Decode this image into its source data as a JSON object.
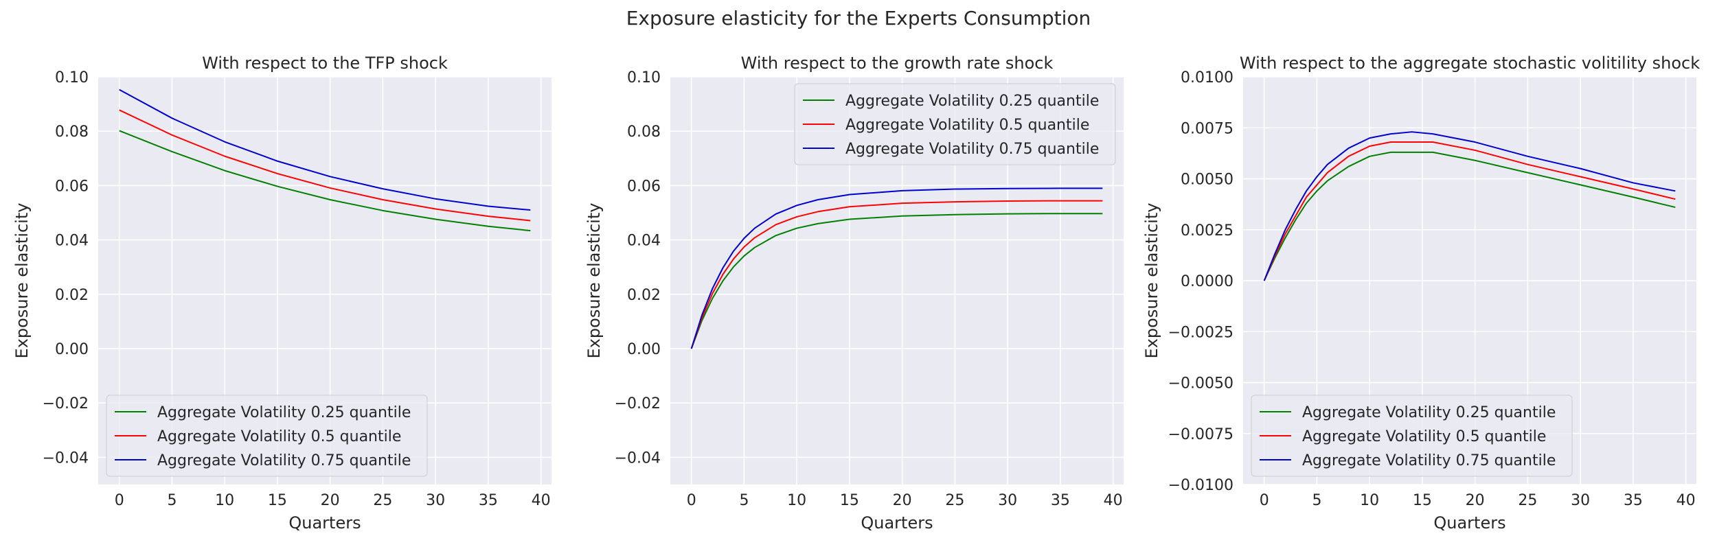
{
  "figure": {
    "title": "Exposure elasticity for the Experts Consumption"
  },
  "chart_data": [
    {
      "type": "line",
      "title": "With respect to the TFP shock",
      "xlabel": "Quarters",
      "ylabel": "Exposure elasticity",
      "xlim": [
        -2,
        41
      ],
      "ylim": [
        -0.05,
        0.1
      ],
      "xticks": [
        0,
        5,
        10,
        15,
        20,
        25,
        30,
        35,
        40
      ],
      "yticks": [
        -0.04,
        -0.02,
        0.0,
        0.02,
        0.04,
        0.06,
        0.08,
        0.1
      ],
      "ytick_labels": [
        "−0.04",
        "−0.02",
        "0.00",
        "0.02",
        "0.04",
        "0.06",
        "0.08",
        "0.10"
      ],
      "grid": true,
      "legend": "lower-left",
      "x": [
        0,
        5,
        10,
        15,
        20,
        25,
        30,
        35,
        39
      ],
      "series": [
        {
          "name": "Aggregate Volatility 0.25 quantile",
          "color": "#008000",
          "values": [
            0.0802,
            0.0725,
            0.0655,
            0.0597,
            0.0548,
            0.0508,
            0.0476,
            0.045,
            0.0434
          ]
        },
        {
          "name": "Aggregate Volatility 0.5 quantile",
          "color": "#ff0000",
          "values": [
            0.0878,
            0.0786,
            0.0708,
            0.0644,
            0.0591,
            0.0548,
            0.0514,
            0.0487,
            0.0471
          ]
        },
        {
          "name": "Aggregate Volatility 0.75 quantile",
          "color": "#0000cd",
          "values": [
            0.0953,
            0.0848,
            0.0761,
            0.069,
            0.0633,
            0.0588,
            0.0551,
            0.0524,
            0.051
          ]
        }
      ]
    },
    {
      "type": "line",
      "title": "With respect to the growth rate shock",
      "xlabel": "Quarters",
      "ylabel": "Exposure elasticity",
      "xlim": [
        -2,
        41
      ],
      "ylim": [
        -0.05,
        0.1
      ],
      "xticks": [
        0,
        5,
        10,
        15,
        20,
        25,
        30,
        35,
        40
      ],
      "yticks": [
        -0.04,
        -0.02,
        0.0,
        0.02,
        0.04,
        0.06,
        0.08,
        0.1
      ],
      "ytick_labels": [
        "−0.04",
        "−0.02",
        "0.00",
        "0.02",
        "0.04",
        "0.06",
        "0.08",
        "0.10"
      ],
      "grid": true,
      "legend": "upper-right",
      "x": [
        0,
        1,
        2,
        3,
        4,
        5,
        6,
        8,
        10,
        12,
        15,
        20,
        25,
        30,
        35,
        39
      ],
      "series": [
        {
          "name": "Aggregate Volatility 0.25 quantile",
          "color": "#008000",
          "values": [
            0.0,
            0.0103,
            0.0185,
            0.025,
            0.0301,
            0.0341,
            0.0372,
            0.0416,
            0.0443,
            0.046,
            0.0476,
            0.0488,
            0.0493,
            0.0496,
            0.0497,
            0.0497
          ]
        },
        {
          "name": "Aggregate Volatility 0.5 quantile",
          "color": "#ff0000",
          "values": [
            0.0,
            0.0113,
            0.0203,
            0.0274,
            0.033,
            0.0374,
            0.0408,
            0.0456,
            0.0485,
            0.0504,
            0.0522,
            0.0535,
            0.054,
            0.0543,
            0.0544,
            0.0544
          ]
        },
        {
          "name": "Aggregate Volatility 0.75 quantile",
          "color": "#0000cd",
          "values": [
            0.0,
            0.0123,
            0.0221,
            0.0298,
            0.0359,
            0.0406,
            0.0443,
            0.0495,
            0.0527,
            0.0548,
            0.0567,
            0.0581,
            0.0587,
            0.0589,
            0.059,
            0.059
          ]
        }
      ]
    },
    {
      "type": "line",
      "title": "With respect to the aggregate stochastic volitility shock",
      "xlabel": "Quarters",
      "ylabel": "Exposure elasticity",
      "xlim": [
        -2,
        41
      ],
      "ylim": [
        -0.01,
        0.01
      ],
      "xticks": [
        0,
        5,
        10,
        15,
        20,
        25,
        30,
        35,
        40
      ],
      "yticks": [
        -0.01,
        -0.0075,
        -0.005,
        -0.0025,
        0.0,
        0.0025,
        0.005,
        0.0075,
        0.01
      ],
      "ytick_labels": [
        "−0.0100",
        "−0.0075",
        "−0.0050",
        "−0.0025",
        "0.0000",
        "0.0025",
        "0.0050",
        "0.0075",
        "0.0100"
      ],
      "grid": true,
      "legend": "lower-left",
      "x": [
        0,
        1,
        2,
        3,
        4,
        5,
        6,
        8,
        10,
        12,
        14,
        16,
        20,
        25,
        30,
        35,
        39
      ],
      "series": [
        {
          "name": "Aggregate Volatility 0.25 quantile",
          "color": "#008000",
          "values": [
            0.0,
            0.0011,
            0.0021,
            0.003,
            0.0038,
            0.0044,
            0.0049,
            0.0056,
            0.0061,
            0.0063,
            0.0063,
            0.0063,
            0.0059,
            0.0053,
            0.0047,
            0.0041,
            0.0036
          ]
        },
        {
          "name": "Aggregate Volatility 0.5 quantile",
          "color": "#ff0000",
          "values": [
            0.0,
            0.0012,
            0.0023,
            0.0032,
            0.0041,
            0.0047,
            0.0053,
            0.0061,
            0.0066,
            0.0068,
            0.0068,
            0.0068,
            0.0064,
            0.0057,
            0.0051,
            0.0045,
            0.004
          ]
        },
        {
          "name": "Aggregate Volatility 0.75 quantile",
          "color": "#0000cd",
          "values": [
            0.0,
            0.0013,
            0.0025,
            0.0035,
            0.0044,
            0.0051,
            0.0057,
            0.0065,
            0.007,
            0.0072,
            0.0073,
            0.0072,
            0.0068,
            0.0061,
            0.0055,
            0.0048,
            0.0044
          ]
        }
      ]
    }
  ]
}
